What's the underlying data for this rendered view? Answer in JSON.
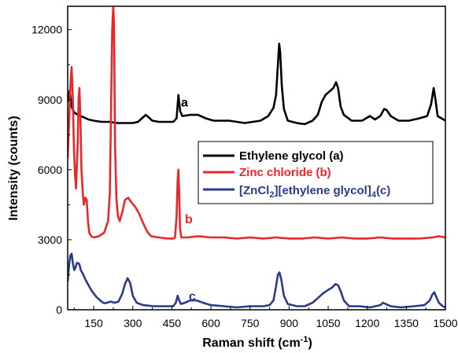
{
  "chart_data": {
    "type": "line",
    "xlabel": "Raman shift (cm",
    "xlabel_sup": "-1",
    "xlabel_end": ")",
    "ylabel": "Intensity (counts)",
    "xlim": [
      50,
      1500
    ],
    "ylim": [
      0,
      13000
    ],
    "xticks": [
      150,
      300,
      450,
      600,
      750,
      900,
      1050,
      1200,
      1350,
      1500
    ],
    "yticks": [
      0,
      3000,
      6000,
      9000,
      12000
    ],
    "legend_position": "center-right",
    "series": [
      {
        "name": "Ethylene glycol (a)",
        "color": "#000000",
        "label": "a",
        "label_at": [
          485,
          8700
        ],
        "points": [
          [
            50,
            8900
          ],
          [
            58,
            9400
          ],
          [
            65,
            8700
          ],
          [
            75,
            8450
          ],
          [
            90,
            8350
          ],
          [
            110,
            8250
          ],
          [
            130,
            8150
          ],
          [
            150,
            8100
          ],
          [
            180,
            8050
          ],
          [
            210,
            8050
          ],
          [
            240,
            8000
          ],
          [
            270,
            8000
          ],
          [
            300,
            8000
          ],
          [
            320,
            8050
          ],
          [
            340,
            8250
          ],
          [
            350,
            8350
          ],
          [
            360,
            8250
          ],
          [
            375,
            8100
          ],
          [
            400,
            8050
          ],
          [
            430,
            8050
          ],
          [
            455,
            8050
          ],
          [
            468,
            8200
          ],
          [
            475,
            9200
          ],
          [
            482,
            8500
          ],
          [
            490,
            8300
          ],
          [
            520,
            8350
          ],
          [
            550,
            8350
          ],
          [
            580,
            8200
          ],
          [
            610,
            8100
          ],
          [
            640,
            8100
          ],
          [
            670,
            8100
          ],
          [
            700,
            8050
          ],
          [
            730,
            8000
          ],
          [
            760,
            8050
          ],
          [
            790,
            8100
          ],
          [
            820,
            8300
          ],
          [
            840,
            8650
          ],
          [
            850,
            9200
          ],
          [
            858,
            10700
          ],
          [
            862,
            11400
          ],
          [
            866,
            11000
          ],
          [
            872,
            9600
          ],
          [
            880,
            8600
          ],
          [
            895,
            8100
          ],
          [
            930,
            8000
          ],
          [
            960,
            7950
          ],
          [
            990,
            8100
          ],
          [
            1010,
            8350
          ],
          [
            1025,
            8900
          ],
          [
            1040,
            9200
          ],
          [
            1055,
            9350
          ],
          [
            1070,
            9500
          ],
          [
            1080,
            9750
          ],
          [
            1088,
            9500
          ],
          [
            1098,
            8700
          ],
          [
            1110,
            8350
          ],
          [
            1140,
            8100
          ],
          [
            1180,
            8100
          ],
          [
            1210,
            8300
          ],
          [
            1230,
            8150
          ],
          [
            1250,
            8300
          ],
          [
            1265,
            8600
          ],
          [
            1275,
            8550
          ],
          [
            1290,
            8300
          ],
          [
            1320,
            8100
          ],
          [
            1360,
            8100
          ],
          [
            1400,
            8200
          ],
          [
            1430,
            8300
          ],
          [
            1445,
            8800
          ],
          [
            1455,
            9500
          ],
          [
            1462,
            9000
          ],
          [
            1470,
            8300
          ],
          [
            1485,
            8200
          ],
          [
            1500,
            8100
          ]
        ]
      },
      {
        "name": "Zinc chloride (b)",
        "color": "#e8282a",
        "label": "b",
        "label_at": [
          500,
          3700
        ],
        "points": [
          [
            50,
            6500
          ],
          [
            55,
            8000
          ],
          [
            60,
            9500
          ],
          [
            65,
            10400
          ],
          [
            70,
            9000
          ],
          [
            74,
            7000
          ],
          [
            78,
            5800
          ],
          [
            82,
            5200
          ],
          [
            88,
            7000
          ],
          [
            92,
            9000
          ],
          [
            95,
            9500
          ],
          [
            99,
            8200
          ],
          [
            103,
            6000
          ],
          [
            108,
            5000
          ],
          [
            112,
            4500
          ],
          [
            118,
            4800
          ],
          [
            123,
            4700
          ],
          [
            128,
            3800
          ],
          [
            133,
            3300
          ],
          [
            140,
            3150
          ],
          [
            150,
            3100
          ],
          [
            170,
            3150
          ],
          [
            190,
            3300
          ],
          [
            205,
            3800
          ],
          [
            212,
            5000
          ],
          [
            217,
            9000
          ],
          [
            221,
            12000
          ],
          [
            225,
            13000
          ],
          [
            228,
            12200
          ],
          [
            232,
            7000
          ],
          [
            237,
            4800
          ],
          [
            243,
            4000
          ],
          [
            250,
            3800
          ],
          [
            260,
            4200
          ],
          [
            270,
            4700
          ],
          [
            282,
            4800
          ],
          [
            295,
            4600
          ],
          [
            310,
            4400
          ],
          [
            325,
            4100
          ],
          [
            340,
            3700
          ],
          [
            355,
            3350
          ],
          [
            370,
            3150
          ],
          [
            400,
            3100
          ],
          [
            430,
            3050
          ],
          [
            455,
            3050
          ],
          [
            462,
            3100
          ],
          [
            468,
            4000
          ],
          [
            472,
            5500
          ],
          [
            475,
            6000
          ],
          [
            478,
            5000
          ],
          [
            481,
            3500
          ],
          [
            486,
            3100
          ],
          [
            510,
            3100
          ],
          [
            550,
            3150
          ],
          [
            600,
            3100
          ],
          [
            650,
            3100
          ],
          [
            700,
            3050
          ],
          [
            750,
            3100
          ],
          [
            800,
            3050
          ],
          [
            850,
            3100
          ],
          [
            900,
            3050
          ],
          [
            950,
            3050
          ],
          [
            1000,
            3100
          ],
          [
            1050,
            3050
          ],
          [
            1100,
            3100
          ],
          [
            1150,
            3050
          ],
          [
            1200,
            3050
          ],
          [
            1250,
            3100
          ],
          [
            1300,
            3050
          ],
          [
            1350,
            3050
          ],
          [
            1400,
            3050
          ],
          [
            1450,
            3100
          ],
          [
            1475,
            3150
          ],
          [
            1500,
            3100
          ]
        ]
      },
      {
        "name": "[ZnCl2][ethylene glycol]4(c)",
        "color": "#2b3a8f",
        "label": "c",
        "label_at": [
          515,
          400
        ],
        "points": [
          [
            50,
            1200
          ],
          [
            55,
            1900
          ],
          [
            60,
            2300
          ],
          [
            65,
            2400
          ],
          [
            70,
            2000
          ],
          [
            75,
            1700
          ],
          [
            80,
            1800
          ],
          [
            85,
            2000
          ],
          [
            90,
            2000
          ],
          [
            95,
            1950
          ],
          [
            100,
            1700
          ],
          [
            110,
            1500
          ],
          [
            120,
            1250
          ],
          [
            130,
            1050
          ],
          [
            140,
            850
          ],
          [
            150,
            700
          ],
          [
            160,
            550
          ],
          [
            170,
            450
          ],
          [
            180,
            350
          ],
          [
            190,
            280
          ],
          [
            200,
            300
          ],
          [
            215,
            350
          ],
          [
            230,
            300
          ],
          [
            245,
            350
          ],
          [
            260,
            700
          ],
          [
            270,
            1100
          ],
          [
            280,
            1350
          ],
          [
            290,
            1150
          ],
          [
            300,
            600
          ],
          [
            315,
            300
          ],
          [
            340,
            200
          ],
          [
            380,
            150
          ],
          [
            420,
            150
          ],
          [
            455,
            150
          ],
          [
            465,
            300
          ],
          [
            472,
            600
          ],
          [
            478,
            400
          ],
          [
            485,
            250
          ],
          [
            500,
            300
          ],
          [
            520,
            400
          ],
          [
            545,
            400
          ],
          [
            570,
            300
          ],
          [
            600,
            200
          ],
          [
            650,
            150
          ],
          [
            700,
            100
          ],
          [
            750,
            150
          ],
          [
            800,
            150
          ],
          [
            825,
            200
          ],
          [
            840,
            400
          ],
          [
            850,
            1000
          ],
          [
            857,
            1500
          ],
          [
            863,
            1600
          ],
          [
            870,
            1300
          ],
          [
            880,
            600
          ],
          [
            895,
            250
          ],
          [
            930,
            150
          ],
          [
            960,
            150
          ],
          [
            990,
            300
          ],
          [
            1010,
            500
          ],
          [
            1030,
            700
          ],
          [
            1050,
            850
          ],
          [
            1065,
            950
          ],
          [
            1078,
            1100
          ],
          [
            1088,
            1050
          ],
          [
            1098,
            800
          ],
          [
            1110,
            400
          ],
          [
            1130,
            150
          ],
          [
            1170,
            150
          ],
          [
            1210,
            100
          ],
          [
            1250,
            200
          ],
          [
            1260,
            300
          ],
          [
            1270,
            250
          ],
          [
            1290,
            150
          ],
          [
            1330,
            100
          ],
          [
            1380,
            150
          ],
          [
            1420,
            200
          ],
          [
            1440,
            400
          ],
          [
            1450,
            650
          ],
          [
            1457,
            750
          ],
          [
            1465,
            550
          ],
          [
            1475,
            300
          ],
          [
            1490,
            150
          ],
          [
            1500,
            100
          ]
        ]
      }
    ]
  }
}
